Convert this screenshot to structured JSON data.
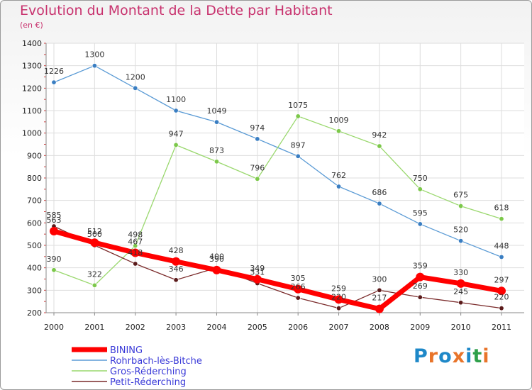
{
  "title": "Evolution du Montant de la Dette par Habitant",
  "subtitle": "(en €)",
  "logo": {
    "text": "Proxiti",
    "colors": [
      "#1e88c8",
      "#e8742a",
      "#1e88c8",
      "#e8742a",
      "#1e88c8",
      "#2ea04a",
      "#e8742a"
    ]
  },
  "chart_data": {
    "type": "line",
    "title": "Evolution du Montant de la Dette par Habitant",
    "subtitle": "(en €)",
    "x": [
      "2000",
      "2001",
      "2002",
      "2003",
      "2004",
      "2005",
      "2006",
      "2007",
      "2008",
      "2009",
      "2010",
      "2011"
    ],
    "ylim": [
      200,
      1400
    ],
    "yticks": [
      200,
      300,
      400,
      500,
      600,
      700,
      800,
      900,
      1000,
      1100,
      1200,
      1300,
      1400
    ],
    "grid": true,
    "legend_position": "bottom-left",
    "series": [
      {
        "name": "Rohrbach-lès-Bitche",
        "color": "#5b9bd5",
        "marker": "#3a7ec2",
        "values": [
          1226,
          1300,
          1200,
          1100,
          1049,
          974,
          897,
          762,
          686,
          595,
          520,
          448
        ]
      },
      {
        "name": "Gros-Réderching",
        "color": "#9ad86e",
        "marker": "#7cc84a",
        "values": [
          390,
          322,
          498,
          947,
          873,
          796,
          1075,
          1009,
          942,
          750,
          675,
          618
        ]
      },
      {
        "name": "Petit-Réderching",
        "color": "#7a2a2a",
        "marker": "#5a1a1a",
        "values": [
          585,
          500,
          418,
          346,
          400,
          331,
          266,
          220,
          300,
          269,
          245,
          220
        ]
      },
      {
        "name": "BINING",
        "color": "#ff0000",
        "marker": "#ff0000",
        "values": [
          563,
          512,
          467,
          428,
          390,
          349,
          305,
          259,
          217,
          359,
          330,
          297
        ]
      }
    ],
    "legend_order": [
      "BINING",
      "Rohrbach-lès-Bitche",
      "Gros-Réderching",
      "Petit-Réderching"
    ]
  }
}
